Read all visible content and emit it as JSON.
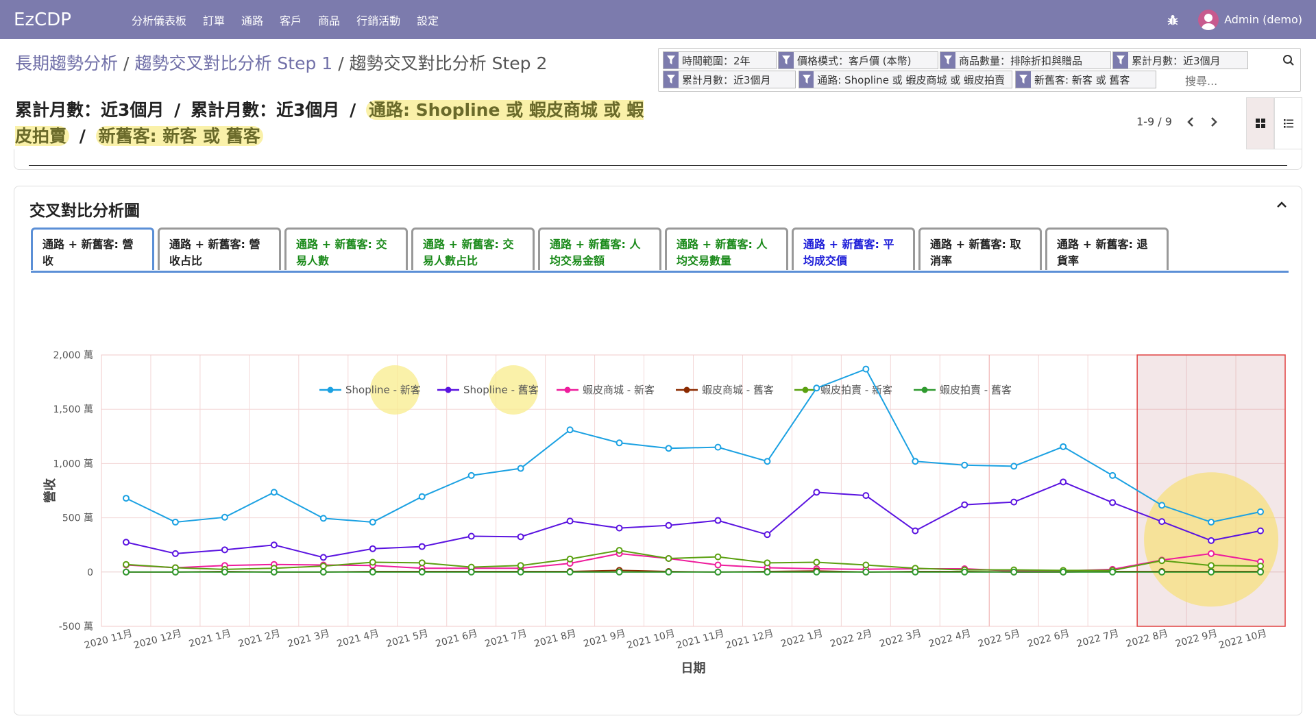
{
  "app": {
    "brand": "EzCDP"
  },
  "nav": {
    "menu": [
      "分析儀表板",
      "訂單",
      "通路",
      "客戶",
      "商品",
      "行銷活動",
      "設定"
    ],
    "user": "Admin (demo)"
  },
  "breadcrumb": {
    "step1": "長期趨勢分析",
    "step2": "趨勢交叉對比分析 Step 1",
    "current": "趨勢交叉對比分析 Step 2",
    "sep": "/"
  },
  "search": {
    "facets": [
      "時間範圍：2年",
      "價格模式：客戶價 (本幣)",
      "商品數量：排除折扣與贈品",
      "累計月數：近3個月",
      "累計月數：近3個月",
      "通路: Shopline 或 蝦皮商城 或 蝦皮拍賣",
      "新舊客: 新客 或 舊客"
    ],
    "placeholder": "搜尋..."
  },
  "summary": {
    "part1": "累計月數：近3個月",
    "part2": "累計月數：近3個月",
    "part3": "通路: Shopline 或 蝦皮商城 或 蝦皮拍賣",
    "part4": "新舊客: 新客 或 舊客",
    "sep": "/"
  },
  "pager": {
    "range": "1-9 / 9"
  },
  "card": {
    "title": "交叉對比分析圖",
    "tabs": [
      {
        "label": "通路 + 新舊客: 營收",
        "color": "#222222"
      },
      {
        "label": "通路 + 新舊客: 營收占比",
        "color": "#222222"
      },
      {
        "label": "通路 + 新舊客: 交易人數",
        "color": "#1a8a1a"
      },
      {
        "label": "通路 + 新舊客: 交易人數占比",
        "color": "#1a8a1a"
      },
      {
        "label": "通路 + 新舊客: 人均交易金額",
        "color": "#1a8a1a"
      },
      {
        "label": "通路 + 新舊客: 人均交易數量",
        "color": "#1a8a1a"
      },
      {
        "label": "通路 + 新舊客: 平均成交價",
        "color": "#1d1dd8"
      },
      {
        "label": "通路 + 新舊客: 取消率",
        "color": "#222222"
      },
      {
        "label": "通路 + 新舊客: 退貨率",
        "color": "#222222"
      }
    ]
  },
  "chart_data": {
    "type": "line",
    "xlabel": "日期",
    "ylabel": "營收",
    "ylim": [
      -500,
      2000
    ],
    "yticks": [
      -500,
      0,
      500,
      1000,
      1500,
      2000
    ],
    "ytick_labels": [
      "-500 萬",
      "0",
      "500 萬",
      "1,000 萬",
      "1,500 萬",
      "2,000 萬"
    ],
    "grid": true,
    "legend_position": "top",
    "categories": [
      "2020 11月",
      "2020 12月",
      "2021 1月",
      "2021 2月",
      "2021 3月",
      "2021 4月",
      "2021 5月",
      "2021 6月",
      "2021 7月",
      "2021 8月",
      "2021 9月",
      "2021 10月",
      "2021 11月",
      "2021 12月",
      "2022 1月",
      "2022 2月",
      "2022 3月",
      "2022 4月",
      "2022 5月",
      "2022 6月",
      "2022 7月",
      "2022 8月",
      "2022 9月",
      "2022 10月"
    ],
    "series": [
      {
        "name": "Shopline - 新客",
        "color": "#1ba1e2",
        "values": [
          680,
          460,
          505,
          735,
          495,
          460,
          695,
          890,
          955,
          1310,
          1190,
          1140,
          1150,
          1020,
          1695,
          1870,
          1020,
          985,
          975,
          1155,
          890,
          615,
          460,
          555
        ]
      },
      {
        "name": "Shopline - 舊客",
        "color": "#5a13e0",
        "values": [
          275,
          170,
          205,
          250,
          135,
          215,
          235,
          330,
          325,
          470,
          405,
          430,
          475,
          345,
          735,
          705,
          380,
          620,
          645,
          830,
          640,
          465,
          290,
          380
        ]
      },
      {
        "name": "蝦皮商城 - 新客",
        "color": "#ee1c9c",
        "values": [
          65,
          40,
          60,
          70,
          65,
          60,
          35,
          35,
          35,
          80,
          170,
          125,
          65,
          40,
          30,
          25,
          30,
          30,
          10,
          10,
          25,
          110,
          170,
          95
        ]
      },
      {
        "name": "蝦皮商城 - 舊客",
        "color": "#8b2a00",
        "values": [
          0,
          0,
          5,
          0,
          0,
          5,
          5,
          5,
          5,
          5,
          15,
          5,
          0,
          5,
          10,
          0,
          5,
          5,
          0,
          0,
          5,
          5,
          5,
          5
        ]
      },
      {
        "name": "蝦皮拍賣 - 新客",
        "color": "#5aa010",
        "values": [
          70,
          40,
          25,
          35,
          55,
          90,
          85,
          45,
          60,
          120,
          200,
          125,
          140,
          85,
          90,
          65,
          35,
          20,
          20,
          15,
          15,
          105,
          60,
          55
        ]
      },
      {
        "name": "蝦皮拍賣 - 舊客",
        "color": "#2f9a2f",
        "values": [
          0,
          0,
          0,
          0,
          0,
          0,
          0,
          0,
          0,
          0,
          0,
          0,
          0,
          0,
          0,
          0,
          0,
          0,
          0,
          0,
          0,
          0,
          0,
          0
        ]
      }
    ]
  }
}
